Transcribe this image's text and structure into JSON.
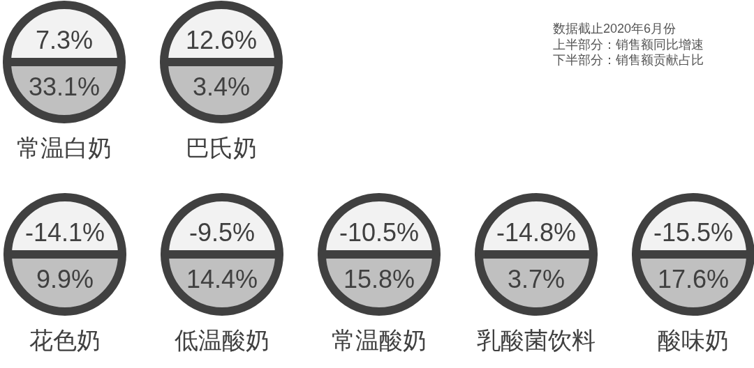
{
  "chart_data": [
    {
      "type": "other",
      "categories": [
        "常温白奶",
        "巴氏奶"
      ],
      "series": [
        {
          "color": "#f2f2f2",
          "values": [
            7.3,
            12.6
          ],
          "value_labels": [
            "7.3%",
            "12.6%"
          ]
        },
        {
          "color": "#c0c0c0",
          "values": [
            33.1,
            3.4
          ],
          "value_labels": [
            "33.1%",
            "3.4%"
          ]
        }
      ],
      "annotations": [
        "数据截止2020年6月份",
        "上半部分：销售额同比增速",
        "下半部分：销售额贡献占比"
      ]
    },
    {
      "type": "other",
      "categories": [
        "花色奶",
        "低温酸奶",
        "常温酸奶",
        "乳酸菌饮料",
        "酸味奶"
      ],
      "series": [
        {
          "color": "#f2f2f2",
          "values": [
            -14.1,
            -9.5,
            -10.5,
            -14.8,
            -15.5
          ],
          "value_labels": [
            "-14.1%",
            "-9.5%",
            "-10.5%",
            "-14.8%",
            "-15.5%"
          ]
        },
        {
          "color": "#c0c0c0",
          "values": [
            9.9,
            14.4,
            15.8,
            3.7,
            17.6
          ],
          "value_labels": [
            "9.9%",
            "14.4%",
            "15.8%",
            "3.7%",
            "17.6%"
          ]
        }
      ]
    }
  ]
}
